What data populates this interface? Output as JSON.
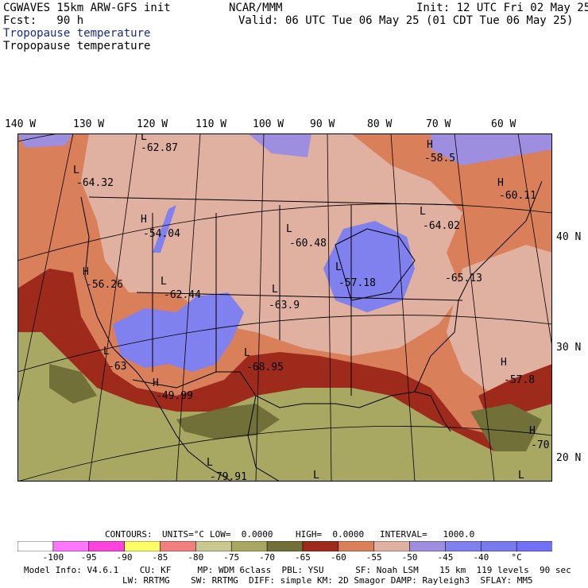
{
  "header": {
    "line1_left": "CGWAVES 15km ARW-GFS init",
    "line1_center": "NCAR/MMM",
    "line1_right": "Init: 12 UTC Fri 02 May 25",
    "line2_left": "Fcst:   90 h",
    "line2_right": "Valid: 06 UTC Tue 06 May 25 (01 CDT Tue 06 May 25)",
    "line3": "Tropopause temperature",
    "line4": "Tropopause temperature"
  },
  "lon_labels": [
    "140 W",
    "130 W",
    "120 W",
    "110 W",
    "100 W",
    "90 W",
    "80 W",
    "70 W",
    "60 W"
  ],
  "lat_labels": [
    "40 N",
    "30 N",
    "20 N"
  ],
  "centers": [
    {
      "type": "L",
      "value": "-62.87"
    },
    {
      "type": "L",
      "value": "-64.32"
    },
    {
      "type": "H",
      "value": "-54.04"
    },
    {
      "type": "H",
      "value": "-56.26"
    },
    {
      "type": "L",
      "value": "-62.44"
    },
    {
      "type": "L",
      "value": "-60.48"
    },
    {
      "type": "L",
      "value": "-63.9"
    },
    {
      "type": "L",
      "value": "-57.18"
    },
    {
      "type": "H",
      "value": "-58.5"
    },
    {
      "type": "H",
      "value": "-60.11"
    },
    {
      "type": "L",
      "value": "-64.02"
    },
    {
      "type": "",
      "value": "-65.13"
    },
    {
      "type": "L",
      "value": "-63"
    },
    {
      "type": "H",
      "value": "-49.99"
    },
    {
      "type": "L",
      "value": "-68.95"
    },
    {
      "type": "H",
      "value": "-57.8"
    },
    {
      "type": "H",
      "value": "-70"
    },
    {
      "type": "L",
      "value": "-79.91"
    },
    {
      "type": "L",
      "value": ""
    },
    {
      "type": "L",
      "value": ""
    }
  ],
  "contours_line": {
    "label": "CONTOURS:",
    "units": "UNITS=°C",
    "low": "LOW=  0.0000",
    "high": "HIGH=  0.0000",
    "interval": "INTERVAL=   1000.0"
  },
  "colorbar": {
    "colors": [
      "#ffffff",
      "#ff77ff",
      "#ff44dd",
      "#ffff66",
      "#f08080",
      "#c8c890",
      "#a8a862",
      "#707038",
      "#9e2a1c",
      "#d9805a",
      "#e0b0a0",
      "#9e8ee0",
      "#8080ee",
      "#7a7af0",
      "#7070f8"
    ],
    "labels": [
      "-100",
      "-95",
      "-90",
      "-85",
      "-80",
      "-75",
      "-70",
      "-65",
      "-60",
      "-55",
      "-50",
      "-45",
      "-40",
      "°C"
    ]
  },
  "footer": {
    "line1": "Model Info: V4.6.1    CU: KF     MP: WDM 6class  PBL: YSU      SF: Noah LSM    15 km  119 levels  90 sec",
    "line2": "LW: RRTMG    SW: RRTMG  DIFF: simple KM: 2D Smagor DAMP: Rayleigh3  SFLAY: MM5"
  },
  "map_colors": {
    "orange": "#d9805a",
    "pink": "#e0b0a0",
    "light_purple": "#9e8ee0",
    "purple": "#8080ee",
    "dark_red": "#9e2a1c",
    "olive": "#a8a862",
    "dark_olive": "#707038"
  }
}
